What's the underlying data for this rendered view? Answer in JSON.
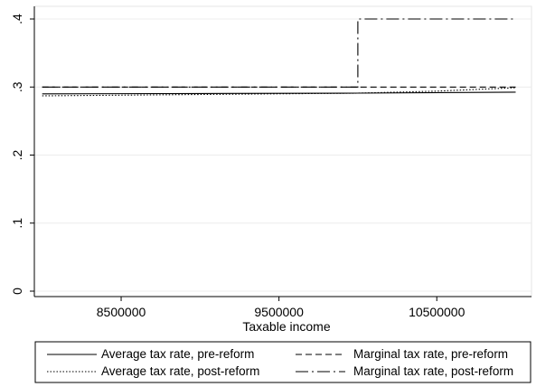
{
  "chart_data": {
    "type": "line",
    "xlabel": "Taxable income",
    "ylabel": "",
    "xlim": [
      7950000,
      11100000
    ],
    "ylim": [
      0,
      0.4
    ],
    "x_ticks": [
      8500000,
      9500000,
      10500000
    ],
    "x_tick_labels": [
      "8500000",
      "9500000",
      "10500000"
    ],
    "y_ticks": [
      0,
      0.1,
      0.2,
      0.3,
      0.4
    ],
    "y_tick_labels": [
      "0",
      ".1",
      ".2",
      ".3",
      ".4"
    ],
    "grid": "horizontal",
    "legend_position": "bottom",
    "series": [
      {
        "name": "Average tax rate, pre-reform",
        "style": "solid",
        "points": [
          [
            8000000,
            0.29
          ],
          [
            9000000,
            0.2905
          ],
          [
            10000000,
            0.291
          ],
          [
            11000000,
            0.2925
          ]
        ]
      },
      {
        "name": "Marginal tax rate, pre-reform",
        "style": "dash",
        "points": [
          [
            8000000,
            0.3
          ],
          [
            11000000,
            0.3
          ]
        ]
      },
      {
        "name": "Average tax rate, post-reform",
        "style": "dot",
        "points": [
          [
            8000000,
            0.287
          ],
          [
            9000000,
            0.289
          ],
          [
            10000000,
            0.291
          ],
          [
            10500000,
            0.294
          ],
          [
            11000000,
            0.299
          ]
        ]
      },
      {
        "name": "Marginal tax rate, post-reform",
        "style": "longdash-dot",
        "points": [
          [
            8000000,
            0.3
          ],
          [
            10000000,
            0.3
          ],
          [
            10000000,
            0.4
          ],
          [
            11000000,
            0.4
          ]
        ]
      }
    ]
  }
}
